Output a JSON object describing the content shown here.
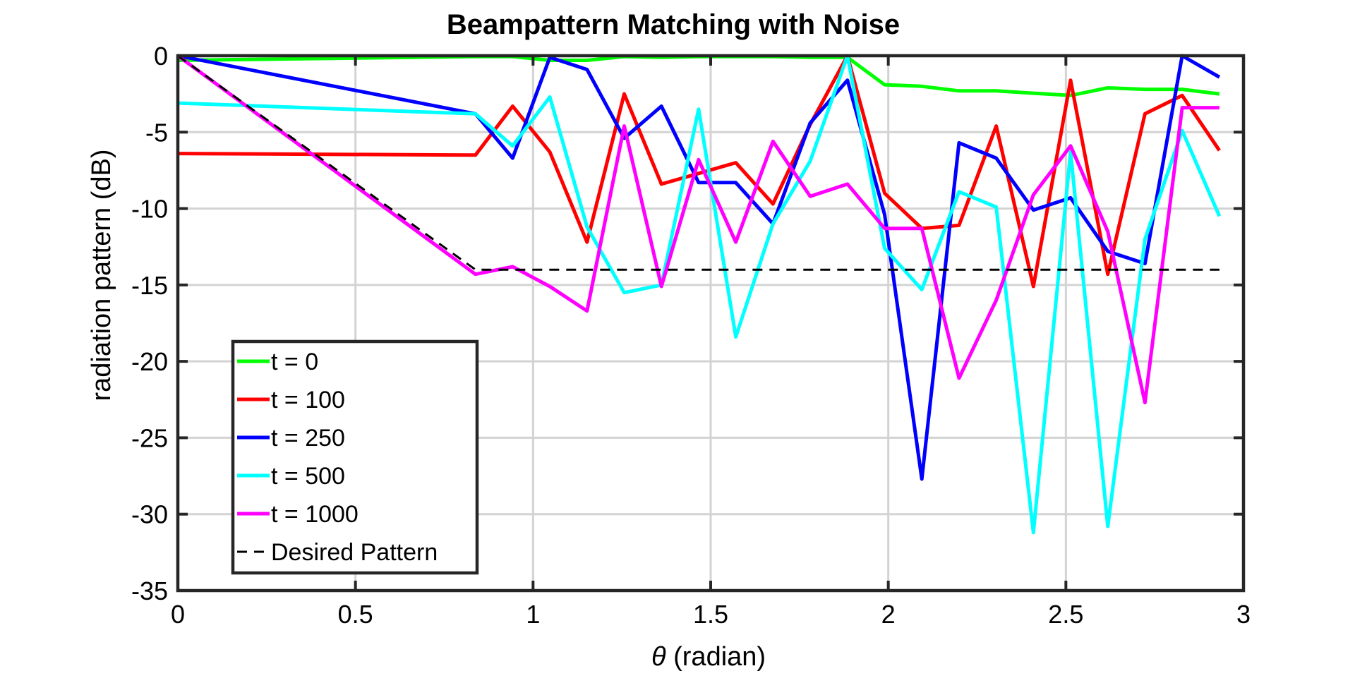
{
  "chart_data": {
    "type": "line",
    "title": "Beampattern Matching with Noise",
    "xlabel_symbol": "θ",
    "xlabel_rest": " (radian)",
    "ylabel": "radiation pattern (dB)",
    "xlim": [
      0,
      3
    ],
    "ylim": [
      -35,
      0
    ],
    "xticks": [
      0,
      0.5,
      1,
      1.5,
      2,
      2.5,
      3
    ],
    "yticks": [
      0,
      -5,
      -10,
      -15,
      -20,
      -25,
      -30,
      -35
    ],
    "xtick_labels": [
      "0",
      "0.5",
      "1",
      "1.5",
      "2",
      "2.5",
      "3"
    ],
    "ytick_labels": [
      "0",
      "-5",
      "-10",
      "-15",
      "-20",
      "-25",
      "-30",
      "-35"
    ],
    "grid": true,
    "legend_position": "lower-left",
    "x": [
      0,
      0.8378,
      0.9425,
      1.0472,
      1.1519,
      1.2566,
      1.3614,
      1.4661,
      1.5708,
      1.6755,
      1.7802,
      1.885,
      1.9897,
      2.0944,
      2.1991,
      2.3038,
      2.4086,
      2.5133,
      2.618,
      2.7227,
      2.8274,
      2.9322
    ],
    "series": [
      {
        "name": "t = 0",
        "color": "#00ff00",
        "dashed": false,
        "values": [
          -0.3,
          -0.05,
          -0.05,
          -0.3,
          -0.3,
          -0.05,
          -0.1,
          -0.05,
          -0.05,
          -0.05,
          -0.1,
          -0.1,
          -1.9,
          -2.0,
          -2.3,
          -2.3,
          -2.45,
          -2.6,
          -2.1,
          -2.2,
          -2.2,
          -2.5
        ]
      },
      {
        "name": "t = 100",
        "color": "#ff0000",
        "dashed": false,
        "values": [
          -6.4,
          -6.5,
          -3.3,
          -6.3,
          -12.2,
          -2.5,
          -8.4,
          -7.7,
          -7.0,
          -9.7,
          -4.5,
          0,
          -9.0,
          -11.3,
          -11.1,
          -4.6,
          -15.1,
          -1.6,
          -14.3,
          -3.8,
          -2.6,
          -6.2
        ]
      },
      {
        "name": "t = 250",
        "color": "#0000ff",
        "dashed": false,
        "values": [
          0,
          -3.8,
          -6.7,
          -0.1,
          -0.9,
          -5.4,
          -3.3,
          -8.3,
          -8.3,
          -11.0,
          -4.4,
          -1.6,
          -10.4,
          -27.7,
          -5.7,
          -6.7,
          -10.1,
          -9.3,
          -12.8,
          -13.6,
          0,
          -1.4
        ]
      },
      {
        "name": "t = 500",
        "color": "#00ffff",
        "dashed": false,
        "values": [
          -3.1,
          -3.8,
          -5.9,
          -2.7,
          -11.2,
          -15.5,
          -15.0,
          -3.5,
          -18.4,
          -11.0,
          -6.9,
          0,
          -12.6,
          -15.3,
          -8.9,
          -9.9,
          -31.2,
          -6.3,
          -30.8,
          -12.0,
          -4.9,
          -10.5
        ]
      },
      {
        "name": "t = 1000",
        "color": "#ff00ff",
        "dashed": false,
        "values": [
          0,
          -14.3,
          -13.8,
          -15.1,
          -16.7,
          -4.6,
          -15.1,
          -6.8,
          -12.2,
          -5.6,
          -9.2,
          -8.4,
          -11.3,
          -11.3,
          -21.1,
          -16.0,
          -9.1,
          -5.9,
          -11.5,
          -22.7,
          -3.4,
          -3.4
        ]
      },
      {
        "name": "Desired Pattern",
        "color": "#000000",
        "dashed": true,
        "points": [
          [
            0,
            0
          ],
          [
            0.8378,
            -14
          ],
          [
            2.9322,
            -14
          ]
        ]
      }
    ]
  }
}
